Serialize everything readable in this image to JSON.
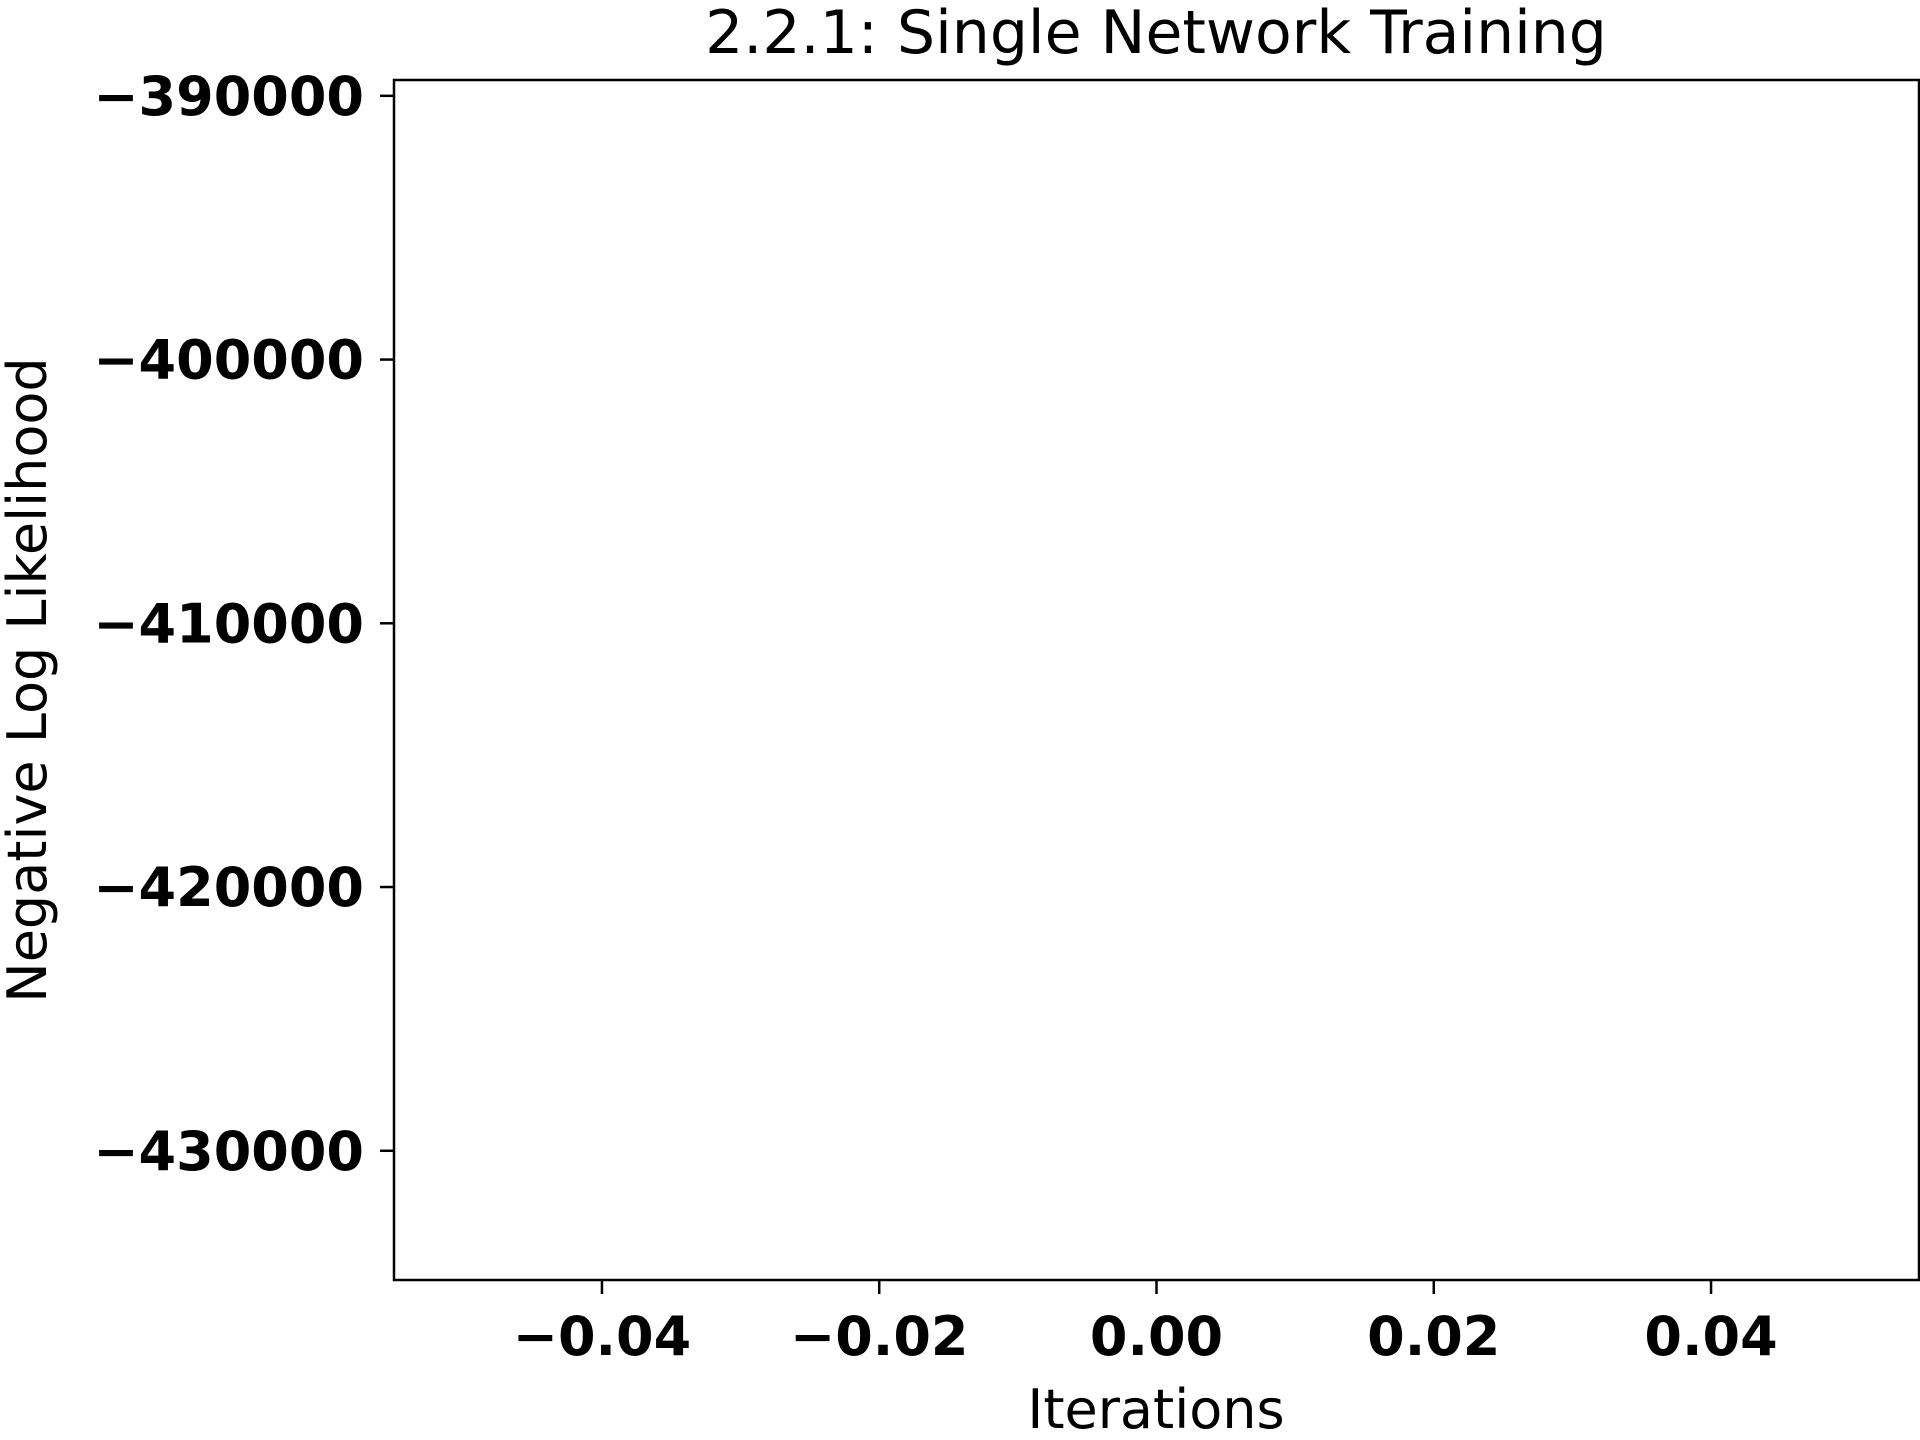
{
  "chart_data": {
    "type": "line",
    "title": "2.2.1: Single Network Training",
    "xlabel": "Iterations",
    "ylabel": "Negative Log Likelihood",
    "xlim": [
      -0.055,
      0.055
    ],
    "ylim": [
      -434900,
      -389400
    ],
    "xticks": [
      -0.04,
      -0.02,
      0.0,
      0.02,
      0.04
    ],
    "xtick_labels": [
      "−0.04",
      "−0.02",
      "0.00",
      "0.02",
      "0.04"
    ],
    "yticks": [
      -390000,
      -400000,
      -410000,
      -420000,
      -430000
    ],
    "ytick_labels": [
      "−390000",
      "−400000",
      "−410000",
      "−420000",
      "−430000"
    ],
    "grid": false,
    "series": [
      {
        "x": [],
        "y": []
      }
    ]
  }
}
